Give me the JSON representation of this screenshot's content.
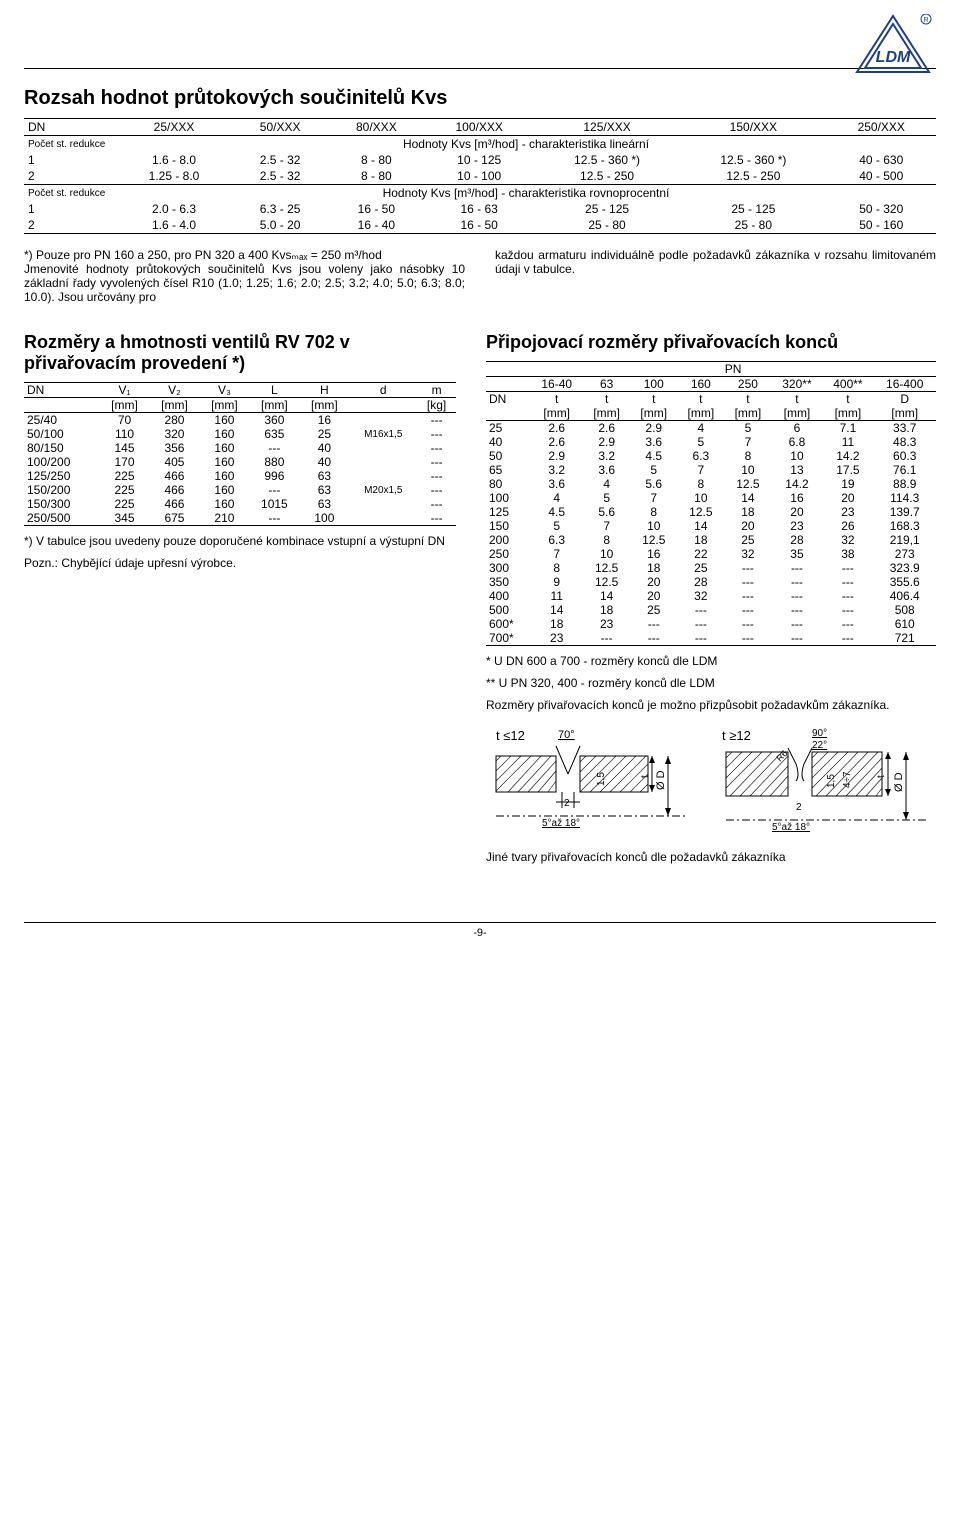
{
  "logo_text": "LDM",
  "h1": "Rozsah hodnot průtokových součinitelů Kvs",
  "kvs": {
    "header": [
      "DN",
      "25/XXX",
      "50/XXX",
      "80/XXX",
      "100/XXX",
      "125/XXX",
      "150/XXX",
      "250/XXX"
    ],
    "linear_label": "Hodnoty Kvs [m³/hod] - charakteristika lineární",
    "rows_linear": [
      [
        "1",
        "1.6 - 8.0",
        "2.5 - 32",
        "8 - 80",
        "10 - 125",
        "12.5 - 360 *)",
        "12.5 - 360 *)",
        "40 - 630"
      ],
      [
        "2",
        "1.25 - 8.0",
        "2.5 - 32",
        "8 - 80",
        "10 - 100",
        "12.5 - 250",
        "12.5 - 250",
        "40 - 500"
      ]
    ],
    "eq_label": "Hodnoty Kvs [m³/hod] - charakteristika rovnoprocentní",
    "rows_eq": [
      [
        "1",
        "2.0 - 6.3",
        "6.3 - 25",
        "16 - 50",
        "16 - 63",
        "25 - 125",
        "25 - 125",
        "50 - 320"
      ],
      [
        "2",
        "1.6 - 4.0",
        "5.0 - 20",
        "16 - 40",
        "16 - 50",
        "25 - 80",
        "25 - 80",
        "50 - 160"
      ]
    ],
    "redukce": "Počet st. redukce"
  },
  "note_left": "*) Pouze pro PN 160 a 250, pro PN 320 a 400 Kvsₘₐₓ = 250 m³/hod\nJmenovité hodnoty průtokových součinitelů Kvs jsou voleny jako násobky 10 základní řady vyvolených čísel R10 (1.0; 1.25; 1.6; 2.0; 2.5; 3.2; 4.0; 5.0; 6.3; 8.0; 10.0). Jsou určovány pro",
  "note_right": "každou armaturu individuálně podle požadavků zákazníka v rozsahu limitovaném údaji v tabulce.",
  "h2_left": "Rozměry a hmotnosti ventilů RV 702 v přivařovacím provedení *)",
  "dims": {
    "header": [
      "DN",
      "V₁",
      "V₂",
      "V₃",
      "L",
      "H",
      "d",
      "m"
    ],
    "units": [
      "",
      "[mm]",
      "[mm]",
      "[mm]",
      "[mm]",
      "[mm]",
      "",
      "[kg]"
    ],
    "rows": [
      [
        "25/40",
        "70",
        "280",
        "160",
        "360",
        "16",
        "",
        "---"
      ],
      [
        "50/100",
        "110",
        "320",
        "160",
        "635",
        "25",
        "M16x1,5",
        "---"
      ],
      [
        "80/150",
        "145",
        "356",
        "160",
        "---",
        "40",
        "",
        "---"
      ],
      [
        "100/200",
        "170",
        "405",
        "160",
        "880",
        "40",
        "",
        "---"
      ],
      [
        "125/250",
        "225",
        "466",
        "160",
        "996",
        "63",
        "",
        "---"
      ],
      [
        "150/200",
        "225",
        "466",
        "160",
        "---",
        "63",
        "M20x1,5",
        "---"
      ],
      [
        "150/300",
        "225",
        "466",
        "160",
        "1015",
        "63",
        "",
        "---"
      ],
      [
        "250/500",
        "345",
        "675",
        "210",
        "---",
        "100",
        "",
        "---"
      ]
    ]
  },
  "dims_note1": "*) V tabulce jsou uvedeny pouze doporučené kombinace vstupní a výstupní DN",
  "dims_note2": "Pozn.: Chybějící údaje upřesní výrobce.",
  "h2_right": "Připojovací rozměry přivařovacích konců",
  "pn": {
    "top": "PN",
    "header": [
      "",
      "16-40",
      "63",
      "100",
      "160",
      "250",
      "320**",
      "400**",
      "16-400"
    ],
    "header2": [
      "DN",
      "t",
      "t",
      "t",
      "t",
      "t",
      "t",
      "t",
      "D"
    ],
    "units": [
      "",
      "[mm]",
      "[mm]",
      "[mm]",
      "[mm]",
      "[mm]",
      "[mm]",
      "[mm]",
      "[mm]"
    ],
    "rows": [
      [
        "25",
        "2.6",
        "2.6",
        "2.9",
        "4",
        "5",
        "6",
        "7.1",
        "33.7"
      ],
      [
        "40",
        "2.6",
        "2.9",
        "3.6",
        "5",
        "7",
        "6.8",
        "11",
        "48.3"
      ],
      [
        "50",
        "2.9",
        "3.2",
        "4.5",
        "6.3",
        "8",
        "10",
        "14.2",
        "60.3"
      ],
      [
        "65",
        "3.2",
        "3.6",
        "5",
        "7",
        "10",
        "13",
        "17.5",
        "76.1"
      ],
      [
        "80",
        "3.6",
        "4",
        "5.6",
        "8",
        "12.5",
        "14.2",
        "19",
        "88.9"
      ],
      [
        "100",
        "4",
        "5",
        "7",
        "10",
        "14",
        "16",
        "20",
        "114.3"
      ],
      [
        "125",
        "4.5",
        "5.6",
        "8",
        "12.5",
        "18",
        "20",
        "23",
        "139.7"
      ],
      [
        "150",
        "5",
        "7",
        "10",
        "14",
        "20",
        "23",
        "26",
        "168.3"
      ],
      [
        "200",
        "6.3",
        "8",
        "12.5",
        "18",
        "25",
        "28",
        "32",
        "219,1"
      ],
      [
        "250",
        "7",
        "10",
        "16",
        "22",
        "32",
        "35",
        "38",
        "273"
      ],
      [
        "300",
        "8",
        "12.5",
        "18",
        "25",
        "---",
        "---",
        "---",
        "323.9"
      ],
      [
        "350",
        "9",
        "12.5",
        "20",
        "28",
        "---",
        "---",
        "---",
        "355.6"
      ],
      [
        "400",
        "11",
        "14",
        "20",
        "32",
        "---",
        "---",
        "---",
        "406.4"
      ],
      [
        "500",
        "14",
        "18",
        "25",
        "---",
        "---",
        "---",
        "---",
        "508"
      ],
      [
        "600*",
        "18",
        "23",
        "---",
        "---",
        "---",
        "---",
        "---",
        "610"
      ],
      [
        "700*",
        "23",
        "---",
        "---",
        "---",
        "---",
        "---",
        "---",
        "721"
      ]
    ]
  },
  "pn_note1": "* U DN 600 a 700 - rozměry konců dle LDM",
  "pn_note2": "** U PN 320, 400 - rozměry konců dle LDM",
  "pn_note3": "Rozměry přivařovacích konců je možno přizpůsobit požadavkům zákazníka.",
  "diag": {
    "t1": "t ≤12",
    "t2": "t ≥12",
    "a70": "70°",
    "a90": "90°",
    "a22": "22°",
    "r6": "R6",
    "d15_a": "1,5",
    "d15_b": "1,5",
    "d2_a": "2",
    "d2_b": "2",
    "d47": "4÷7",
    "ang": "5°až 18°",
    "dia": "Ø D"
  },
  "bottom_note": "Jiné tvary přivařovacích konců dle požadavků zákazníka",
  "page": "-9-"
}
